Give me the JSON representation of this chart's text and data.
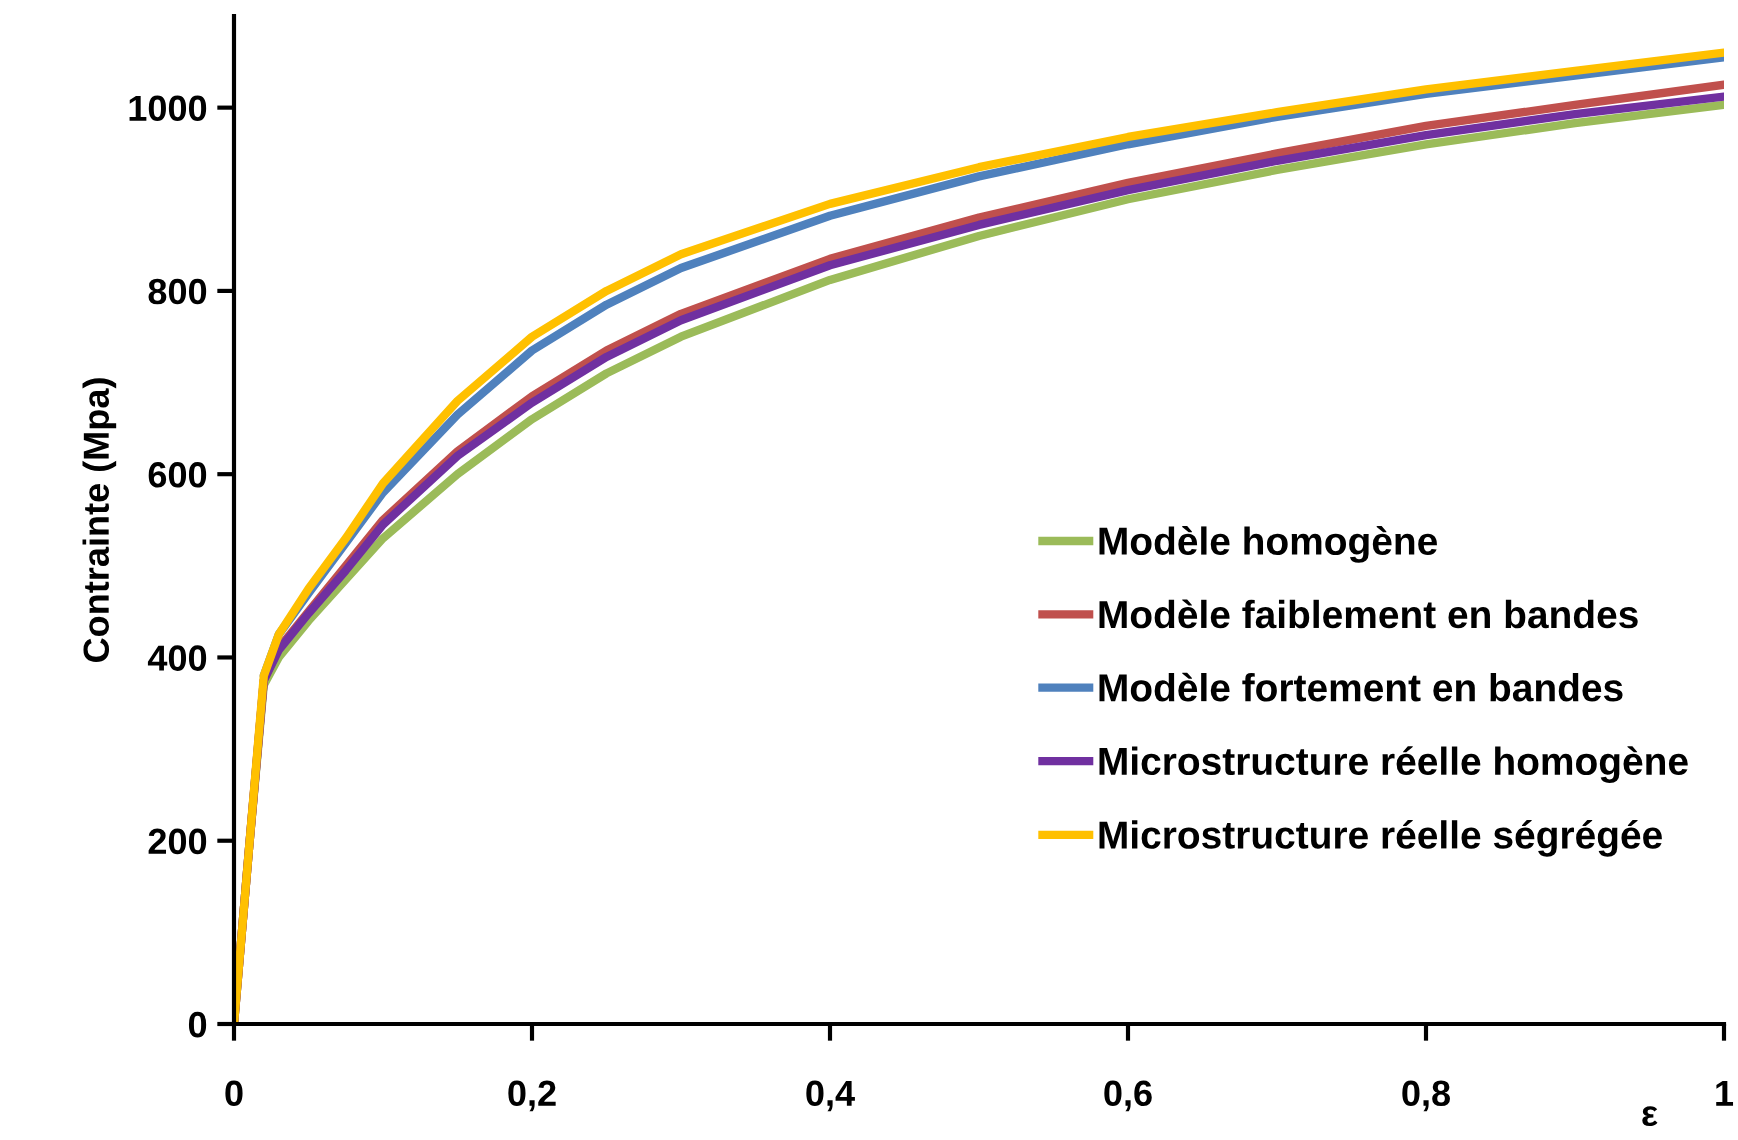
{
  "chart_data": {
    "type": "line",
    "xlabel": "ε",
    "ylabel": "Contrainte (Mpa)",
    "x": [
      0,
      0.01,
      0.02,
      0.03,
      0.05,
      0.075,
      0.1,
      0.15,
      0.2,
      0.25,
      0.3,
      0.4,
      0.5,
      0.6,
      0.7,
      0.8,
      0.9,
      1
    ],
    "series": [
      {
        "name": "Modèle homogène",
        "color": "#9bbb59",
        "values": [
          0,
          190,
          370,
          400,
          440,
          485,
          530,
          600,
          660,
          710,
          750,
          812,
          860,
          900,
          932,
          960,
          983,
          1003
        ]
      },
      {
        "name": "Modèle faiblement en bandes",
        "color": "#c0504d",
        "values": [
          0,
          190,
          375,
          410,
          450,
          500,
          550,
          625,
          685,
          735,
          775,
          835,
          880,
          918,
          950,
          980,
          1003,
          1025
        ]
      },
      {
        "name": "Modèle fortement en bandes",
        "color": "#4f81bd",
        "values": [
          null,
          null,
          380,
          425,
          470,
          525,
          580,
          665,
          735,
          785,
          825,
          882,
          925,
          960,
          990,
          1015,
          1035,
          1055
        ]
      },
      {
        "name": "Microstructure réelle homogène",
        "color": "#7030a0",
        "values": [
          0,
          190,
          375,
          408,
          448,
          495,
          545,
          620,
          678,
          728,
          768,
          828,
          872,
          910,
          942,
          970,
          993,
          1012
        ]
      },
      {
        "name": "Microstructure réelle ségrégée",
        "color": "#ffc000",
        "values": [
          0,
          190,
          380,
          425,
          475,
          530,
          590,
          680,
          750,
          800,
          840,
          895,
          935,
          968,
          995,
          1020,
          1040,
          1060
        ]
      }
    ],
    "xlim": [
      0,
      1
    ],
    "xticks": [
      0,
      {
        "value": 0.2,
        "label": "0,2"
      },
      {
        "value": 0.4,
        "label": "0,4"
      },
      {
        "value": 0.6,
        "label": "0,6"
      },
      {
        "value": 0.8,
        "label": "0,8"
      },
      1
    ],
    "ylim": [
      0,
      1100
    ],
    "yticks": [
      0,
      200,
      400,
      600,
      800,
      1000
    ],
    "legend": "right",
    "grid": false,
    "marker": "none",
    "line_style": "solid"
  }
}
